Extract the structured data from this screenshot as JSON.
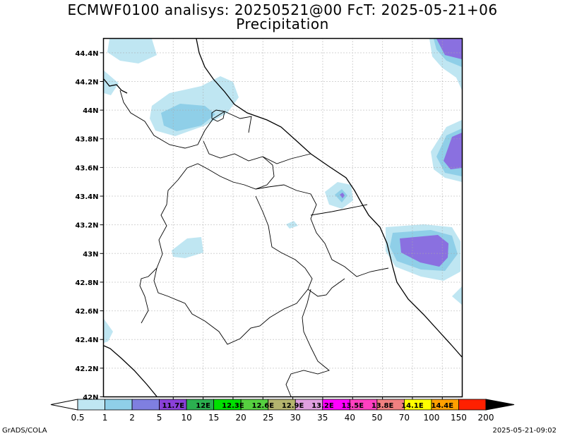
{
  "title_line1": "ECMWF0100 analisys: 20250521@00 FcT: 2025-05-21+06",
  "title_line2": "Precipitation",
  "footer_left": "GrADS/COLA",
  "footer_right": "2025-05-21-09:02",
  "map": {
    "lon_range": [
      11.0,
      14.6
    ],
    "lat_range": [
      42.0,
      44.5
    ],
    "lat_ticks": [
      {
        "value": 44.4,
        "label": "44.4N"
      },
      {
        "value": 44.2,
        "label": "44.2N"
      },
      {
        "value": 44.0,
        "label": "44N"
      },
      {
        "value": 43.8,
        "label": "43.8N"
      },
      {
        "value": 43.6,
        "label": "43.6N"
      },
      {
        "value": 43.4,
        "label": "43.4N"
      },
      {
        "value": 43.2,
        "label": "43.2N"
      },
      {
        "value": 43.0,
        "label": "43N"
      },
      {
        "value": 42.8,
        "label": "42.8N"
      },
      {
        "value": 42.6,
        "label": "42.6N"
      },
      {
        "value": 42.4,
        "label": "42.4N"
      },
      {
        "value": 42.2,
        "label": "42.2N"
      },
      {
        "value": 42.0,
        "label": "42N"
      }
    ],
    "lon_ticks": [
      {
        "value": 11.7,
        "label": "11.7E"
      },
      {
        "value": 12.0,
        "label": "12E"
      },
      {
        "value": 12.3,
        "label": "12.3E"
      },
      {
        "value": 12.6,
        "label": "12.6E"
      },
      {
        "value": 12.9,
        "label": "12.9E"
      },
      {
        "value": 13.2,
        "label": "13.2E"
      },
      {
        "value": 13.5,
        "label": "13.5E"
      },
      {
        "value": 13.8,
        "label": "13.8E"
      },
      {
        "value": 14.1,
        "label": "14.1E"
      },
      {
        "value": 14.4,
        "label": "14.4E"
      }
    ],
    "grid_lines": "dotted"
  },
  "colorbar": {
    "labels": [
      "0.5",
      "1",
      "2",
      "5",
      "10",
      "15",
      "20",
      "25",
      "30",
      "35",
      "40",
      "50",
      "70",
      "100",
      "150",
      "200"
    ],
    "colors": [
      "#bfe6f2",
      "#8fcfe8",
      "#7f7fe0",
      "#8a40d8",
      "#2bb050",
      "#00e000",
      "#56d040",
      "#b4b46e",
      "#e0a0e0",
      "#ff00ff",
      "#ff40c0",
      "#f08080",
      "#ffff00",
      "#ffa000",
      "#ff2000",
      "#800000"
    ]
  },
  "colors": {
    "precip_light": "#bfe6f2",
    "precip_mid": "#8fcfe8",
    "precip_heavy": "#8a70e0"
  }
}
